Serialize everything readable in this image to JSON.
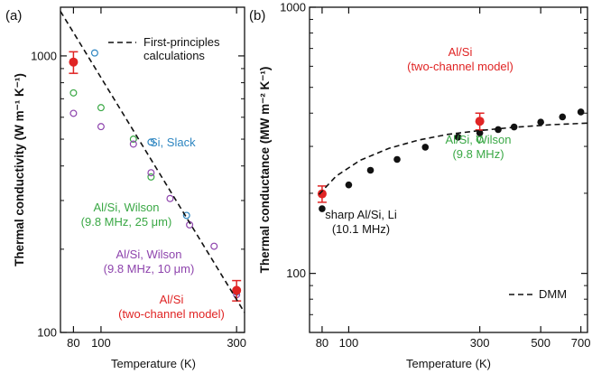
{
  "chart_data": [
    {
      "panel_label": "(a)",
      "type": "scatter",
      "xlabel": "Temperature (K)",
      "ylabel": "Thermal conductivity (W m⁻¹ K⁻¹)",
      "xscale": "log",
      "yscale": "log",
      "xlim": [
        72,
        320
      ],
      "ylim": [
        100,
        1500
      ],
      "xticks": [
        80,
        100,
        300
      ],
      "xtick_labels": [
        "80",
        "100",
        "300"
      ],
      "yticks": [
        100,
        1000
      ],
      "ytick_labels": [
        "100",
        "1000"
      ],
      "grid": false,
      "legend_placement": "top-right",
      "legend": [
        {
          "label_line1": "First-principles",
          "label_line2": "calculations",
          "style": "dashed"
        }
      ],
      "series": [
        {
          "name": "Si, Slack",
          "marker": "open-circle",
          "color": "#2e86c1",
          "x": [
            95,
            150,
            200,
            300
          ],
          "y": [
            1025,
            488,
            265,
            140
          ]
        },
        {
          "name": "Al/Si, Wilson (9.8 MHz, 25 μm)",
          "marker": "open-circle",
          "color": "#3aa845",
          "x": [
            80,
            100,
            130,
            150
          ],
          "y": [
            735,
            650,
            500,
            365
          ]
        },
        {
          "name": "Al/Si, Wilson (9.8 MHz, 10 μm)",
          "marker": "open-circle",
          "color": "#8e44ad",
          "x": [
            80,
            100,
            130,
            150,
            175,
            205,
            250,
            300
          ],
          "y": [
            620,
            555,
            480,
            378,
            305,
            245,
            205,
            137
          ]
        },
        {
          "name": "Al/Si (two-channel model)",
          "marker": "filled-circle",
          "color": "#e02424",
          "x": [
            80,
            300
          ],
          "y": [
            950,
            142
          ],
          "yerr": [
            85,
            12
          ]
        },
        {
          "name": "First-principles calculations",
          "style": "dashed",
          "color": "#111111",
          "x": [
            72,
            320
          ],
          "y": [
            1450,
            118
          ]
        }
      ],
      "annotations": [
        {
          "text": "Si, Slack",
          "color": "#2e86c1"
        },
        {
          "text": "Al/Si, Wilson",
          "text2": "(9.8 MHz, 25 μm)",
          "color": "#3aa845"
        },
        {
          "text": "Al/Si, Wilson",
          "text2": "(9.8 MHz, 10 μm)",
          "color": "#8e44ad"
        },
        {
          "text": "Al/Si",
          "text2": "(two-channel model)",
          "color": "#e02424"
        }
      ]
    },
    {
      "panel_label": "(b)",
      "type": "scatter",
      "xlabel": "Temperature (K)",
      "ylabel": "Thermal conductance (MW m⁻² K⁻¹)",
      "xscale": "log",
      "yscale": "log",
      "xlim": [
        72,
        740
      ],
      "ylim": [
        60,
        1000
      ],
      "xticks": [
        80,
        100,
        300,
        500,
        700
      ],
      "xtick_labels": [
        "80",
        "100",
        "300",
        "500",
        "700"
      ],
      "yticks": [
        100,
        1000
      ],
      "ytick_labels": [
        "100",
        "1000"
      ],
      "grid": false,
      "legend_placement": "bottom-right",
      "legend": [
        {
          "label_line1": "DMM",
          "label_line2": "",
          "style": "dashed"
        }
      ],
      "series": [
        {
          "name": "sharp Al/Si, Li (10.1 MHz)",
          "marker": "filled-circle",
          "color": "#111111",
          "x": [
            80,
            100,
            120,
            150,
            190,
            250,
            300,
            350,
            400,
            500,
            600,
            700
          ],
          "y": [
            175,
            215,
            244,
            268,
            298,
            325,
            337,
            347,
            355,
            370,
            387,
            404
          ]
        },
        {
          "name": "Al/Si, Wilson (9.8 MHz)",
          "marker": "open-circle",
          "color": "#3aa845",
          "x": [
            300
          ],
          "y": [
            318
          ]
        },
        {
          "name": "Al/Si (two-channel model)",
          "marker": "filled-circle",
          "color": "#e02424",
          "x": [
            80,
            300
          ],
          "y": [
            199,
            373
          ],
          "yerr": [
            14,
            27
          ]
        },
        {
          "name": "DMM",
          "style": "dashed",
          "color": "#111111",
          "x": [
            78,
            90,
            110,
            140,
            180,
            230,
            300,
            400,
            550,
            740
          ],
          "y": [
            198,
            232,
            266,
            295,
            317,
            333,
            344,
            354,
            362,
            367
          ]
        }
      ],
      "annotations": [
        {
          "text": "Al/Si",
          "text2": "(two-channel model)",
          "color": "#e02424"
        },
        {
          "text": "Al/Si, Wilson",
          "text2": "(9.8 MHz)",
          "color": "#3aa845"
        },
        {
          "text": "sharp Al/Si, Li",
          "text2": "(10.1 MHz)",
          "color": "#111111"
        }
      ]
    }
  ]
}
